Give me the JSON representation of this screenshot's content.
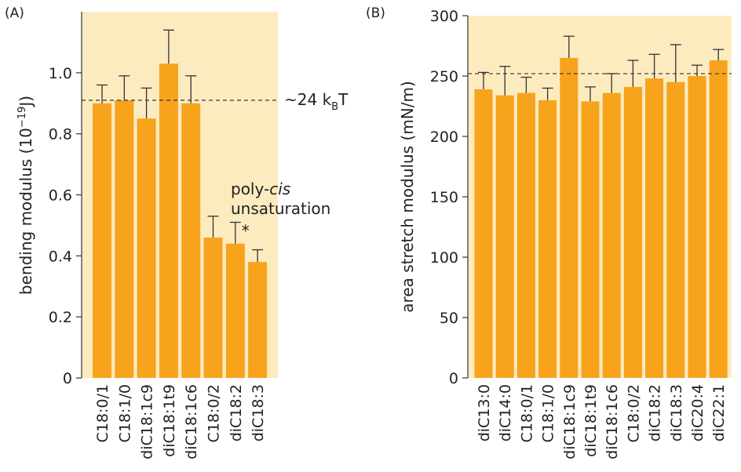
{
  "chart_data": [
    {
      "type": "bar",
      "panel_label": "(A)",
      "title": "",
      "xlabel": "",
      "ylabel": "bending modulus (10",
      "ylabel_sup": "−19",
      "ylabel_end": "J)",
      "ylim": [
        0,
        1.2
      ],
      "yticks": [
        "0",
        "0.2",
        "0.4",
        "0.6",
        "0.8",
        "1.0"
      ],
      "categories": [
        "C18:0/1",
        "C18:1/0",
        "diC18:1c9",
        "diC18:1t9",
        "diC18:1c6",
        "C18:0/2",
        "diC18:2",
        "diC18:3"
      ],
      "values": [
        0.9,
        0.91,
        0.85,
        1.03,
        0.9,
        0.46,
        0.44,
        0.38
      ],
      "errors": [
        0.06,
        0.08,
        0.1,
        0.11,
        0.09,
        0.07,
        0.07,
        0.04
      ],
      "reference_line": {
        "value": 0.91,
        "style": "dashed",
        "label": "~24 k",
        "label_sub": "B",
        "label_end": "T"
      },
      "annotations": {
        "group_line1": "poly-",
        "group_italic": "cis",
        "group_line2": "unsaturation",
        "star": "*"
      },
      "grid": false,
      "colors": {
        "bar": "#F7A31C",
        "background": "#FDEBC0",
        "error_bar": "#333333"
      }
    },
    {
      "type": "bar",
      "panel_label": "(B)",
      "title": "",
      "xlabel": "",
      "ylabel": "area stretch modulus (mN/m)",
      "ylim": [
        0,
        300
      ],
      "yticks": [
        "0",
        "50",
        "100",
        "150",
        "200",
        "250",
        "300"
      ],
      "categories": [
        "diC13:0",
        "diC14:0",
        "C18:0/1",
        "C18:1/0",
        "diC18:1c9",
        "diC18:1t9",
        "diC18:1c6",
        "C18:0/2",
        "diC18:2",
        "diC18:3",
        "diC20:4",
        "diC22:1"
      ],
      "values": [
        239,
        234,
        236,
        230,
        265,
        229,
        236,
        241,
        248,
        245,
        250,
        263
      ],
      "errors": [
        14,
        24,
        13,
        10,
        18,
        12,
        16,
        22,
        20,
        31,
        9,
        9
      ],
      "reference_line": {
        "value": 252,
        "style": "dashed"
      },
      "grid": false,
      "colors": {
        "bar": "#F7A31C",
        "background": "#FDEBC0",
        "error_bar": "#333333"
      }
    }
  ]
}
